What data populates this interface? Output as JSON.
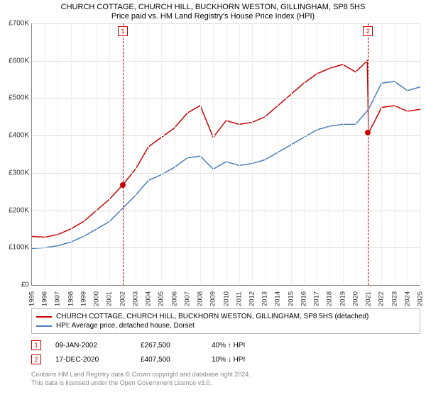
{
  "title": "CHURCH COTTAGE, CHURCH HILL, BUCKHORN WESTON, GILLINGHAM, SP8 5HS",
  "subtitle": "Price paid vs. HM Land Registry's House Price Index (HPI)",
  "chart": {
    "type": "line",
    "ylim": [
      0,
      700000
    ],
    "ytick_step": 100000,
    "yticks": [
      "£0",
      "£100K",
      "£200K",
      "£300K",
      "£400K",
      "£500K",
      "£600K",
      "£700K"
    ],
    "xlim": [
      1995,
      2025
    ],
    "xticks": [
      "1995",
      "1996",
      "1997",
      "1998",
      "1999",
      "2000",
      "2001",
      "2002",
      "2003",
      "2004",
      "2005",
      "2006",
      "2007",
      "2008",
      "2009",
      "2010",
      "2011",
      "2012",
      "2013",
      "2014",
      "2015",
      "2016",
      "2017",
      "2018",
      "2019",
      "2020",
      "2021",
      "2022",
      "2023",
      "2024",
      "2025"
    ],
    "grid_color": "#dddddd",
    "background_color": "#ffffff",
    "series": [
      {
        "name": "CHURCH COTTAGE, CHURCH HILL, BUCKHORN WESTON, GILLINGHAM, SP8 5HS (detached)",
        "color": "#cc0000",
        "line_width": 1.5,
        "data": [
          [
            1995,
            130000
          ],
          [
            1996,
            128000
          ],
          [
            1997,
            135000
          ],
          [
            1998,
            150000
          ],
          [
            1999,
            170000
          ],
          [
            2000,
            200000
          ],
          [
            2001,
            230000
          ],
          [
            2002,
            267500
          ],
          [
            2003,
            310000
          ],
          [
            2004,
            370000
          ],
          [
            2005,
            395000
          ],
          [
            2006,
            420000
          ],
          [
            2007,
            460000
          ],
          [
            2008,
            480000
          ],
          [
            2009,
            395000
          ],
          [
            2010,
            440000
          ],
          [
            2011,
            430000
          ],
          [
            2012,
            435000
          ],
          [
            2013,
            450000
          ],
          [
            2014,
            480000
          ],
          [
            2015,
            510000
          ],
          [
            2016,
            540000
          ],
          [
            2017,
            565000
          ],
          [
            2018,
            580000
          ],
          [
            2019,
            590000
          ],
          [
            2020,
            570000
          ],
          [
            2020.9,
            600000
          ],
          [
            2021,
            407500
          ],
          [
            2021.5,
            440000
          ],
          [
            2022,
            475000
          ],
          [
            2023,
            480000
          ],
          [
            2024,
            465000
          ],
          [
            2025,
            470000
          ]
        ]
      },
      {
        "name": "HPI: Average price, detached house, Dorset",
        "color": "#4a7ebb",
        "line_width": 1.5,
        "data": [
          [
            1995,
            98000
          ],
          [
            1996,
            100000
          ],
          [
            1997,
            105000
          ],
          [
            1998,
            115000
          ],
          [
            1999,
            130000
          ],
          [
            2000,
            150000
          ],
          [
            2001,
            170000
          ],
          [
            2002,
            205000
          ],
          [
            2003,
            240000
          ],
          [
            2004,
            280000
          ],
          [
            2005,
            295000
          ],
          [
            2006,
            315000
          ],
          [
            2007,
            340000
          ],
          [
            2008,
            345000
          ],
          [
            2009,
            310000
          ],
          [
            2010,
            330000
          ],
          [
            2011,
            320000
          ],
          [
            2012,
            325000
          ],
          [
            2013,
            335000
          ],
          [
            2014,
            355000
          ],
          [
            2015,
            375000
          ],
          [
            2016,
            395000
          ],
          [
            2017,
            415000
          ],
          [
            2018,
            425000
          ],
          [
            2019,
            430000
          ],
          [
            2020,
            430000
          ],
          [
            2021,
            470000
          ],
          [
            2022,
            540000
          ],
          [
            2023,
            545000
          ],
          [
            2024,
            520000
          ],
          [
            2025,
            530000
          ]
        ]
      }
    ],
    "markers": [
      {
        "id": "1",
        "year": 2002.02,
        "price": 267500,
        "color": "#cc0000",
        "box_top": 4
      },
      {
        "id": "2",
        "year": 2020.96,
        "price": 407500,
        "color": "#cc0000",
        "box_top": 4
      }
    ]
  },
  "legend": [
    {
      "color": "#cc0000",
      "label": "CHURCH COTTAGE, CHURCH HILL, BUCKHORN WESTON, GILLINGHAM, SP8 5HS (detached)"
    },
    {
      "color": "#4a7ebb",
      "label": "HPI: Average price, detached house, Dorset"
    }
  ],
  "sales": [
    {
      "id": "1",
      "color": "#cc0000",
      "date": "09-JAN-2002",
      "price": "£267,500",
      "diff": "40% ↑ HPI"
    },
    {
      "id": "2",
      "color": "#cc0000",
      "date": "17-DEC-2020",
      "price": "£407,500",
      "diff": "10% ↓ HPI"
    }
  ],
  "footer": {
    "line1": "Contains HM Land Registry data © Crown copyright and database right 2024.",
    "line2": "This data is licensed under the Open Government Licence v3.0."
  }
}
